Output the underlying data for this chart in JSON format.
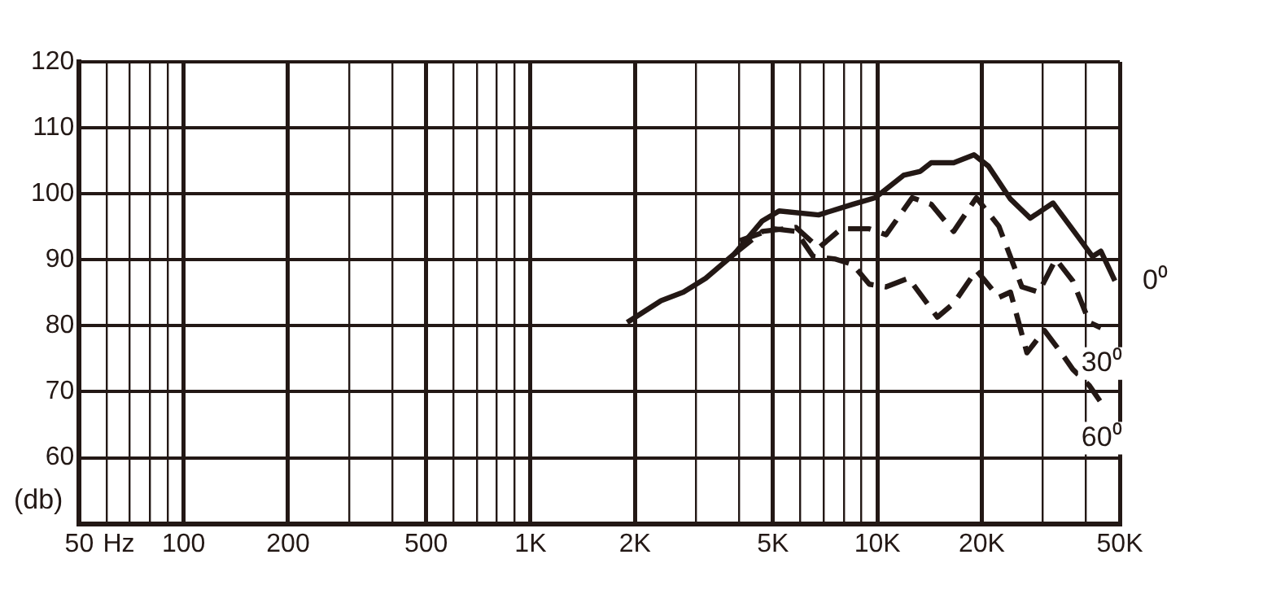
{
  "chart_data": {
    "type": "line",
    "ylabel": "(db)",
    "log": "x",
    "grid": true,
    "legend": false,
    "marker": "none",
    "xlim": [
      50,
      50000
    ],
    "ylim": [
      50,
      120
    ],
    "xticks": [
      50,
      {
        "value": 65,
        "label": "Hz"
      },
      100,
      200,
      500,
      {
        "value": 1000,
        "label": "1K"
      },
      {
        "value": 2000,
        "label": "2K"
      },
      {
        "value": 5000,
        "label": "5K"
      },
      {
        "value": 10000,
        "label": "10K"
      },
      {
        "value": 20000,
        "label": "20K"
      },
      {
        "value": 50000,
        "label": "50K"
      }
    ],
    "yticks": [
      60,
      70,
      80,
      90,
      100,
      110,
      120
    ],
    "series": [
      {
        "name": "0⁰",
        "color": "#231815",
        "line_style": "solid",
        "x": [
          1900,
          2380,
          2760,
          3200,
          3870,
          4660,
          5210,
          6770,
          8490,
          9860,
          11900,
          13300,
          14300,
          16600,
          19000,
          20900,
          24200,
          27600,
          32100,
          38000,
          41700,
          44100,
          48400
        ],
        "values": [
          80.5,
          83.8,
          85.1,
          87.2,
          90.9,
          95.9,
          97.4,
          96.8,
          98.4,
          99.4,
          102.8,
          103.4,
          104.7,
          104.7,
          105.9,
          104.2,
          99.2,
          96.3,
          98.6,
          93.4,
          90.5,
          91.3,
          86.8
        ]
      },
      {
        "name": "30⁰",
        "color": "#231815",
        "line_style": "dashed",
        "x": [
          3870,
          4660,
          5830,
          6770,
          7870,
          9480,
          10600,
          12600,
          14300,
          16600,
          19300,
          22400,
          26100,
          29200,
          32700,
          36600,
          40900,
          44100
        ],
        "values": [
          90.9,
          94.3,
          94.9,
          91.8,
          94.7,
          94.7,
          93.8,
          99.4,
          98.4,
          94.3,
          99.4,
          95.1,
          85.9,
          85.1,
          90.1,
          86.8,
          80.5,
          79.7
        ]
      },
      {
        "name": "60⁰",
        "color": "#231815",
        "line_style": "dashed",
        "x": [
          4010,
          5020,
          5830,
          6530,
          7580,
          8490,
          9480,
          10600,
          12300,
          14900,
          16600,
          19300,
          22400,
          24200,
          27000,
          30300,
          33900,
          36600,
          40900,
          44100
        ],
        "values": [
          92.9,
          94.7,
          94.3,
          90.5,
          90.1,
          89.3,
          86.3,
          85.9,
          87.2,
          81.3,
          83.4,
          88.4,
          84.3,
          85.1,
          75.9,
          79.3,
          75.9,
          73.4,
          70.9,
          68.4
        ]
      }
    ]
  }
}
